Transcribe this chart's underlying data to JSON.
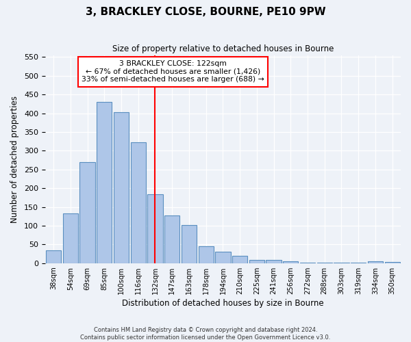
{
  "title": "3, BRACKLEY CLOSE, BOURNE, PE10 9PW",
  "subtitle": "Size of property relative to detached houses in Bourne",
  "xlabel": "Distribution of detached houses by size in Bourne",
  "ylabel": "Number of detached properties",
  "bar_labels": [
    "38sqm",
    "54sqm",
    "69sqm",
    "85sqm",
    "100sqm",
    "116sqm",
    "132sqm",
    "147sqm",
    "163sqm",
    "178sqm",
    "194sqm",
    "210sqm",
    "225sqm",
    "241sqm",
    "256sqm",
    "272sqm",
    "288sqm",
    "303sqm",
    "319sqm",
    "334sqm",
    "350sqm"
  ],
  "bar_values": [
    35,
    132,
    270,
    430,
    403,
    322,
    183,
    128,
    102,
    45,
    30,
    20,
    8,
    8,
    5,
    2,
    2,
    1,
    1,
    5,
    3
  ],
  "bar_color": "#aec6e8",
  "bar_edge_color": "#5a8fc0",
  "vline_index": 6.5,
  "vline_color": "red",
  "ylim": [
    0,
    555
  ],
  "yticks": [
    0,
    50,
    100,
    150,
    200,
    250,
    300,
    350,
    400,
    450,
    500,
    550
  ],
  "annotation_title": "3 BRACKLEY CLOSE: 122sqm",
  "annotation_line1": "← 67% of detached houses are smaller (1,426)",
  "annotation_line2": "33% of semi-detached houses are larger (688) →",
  "footer_line1": "Contains HM Land Registry data © Crown copyright and database right 2024.",
  "footer_line2": "Contains public sector information licensed under the Open Government Licence v3.0.",
  "bg_color": "#eef2f8"
}
